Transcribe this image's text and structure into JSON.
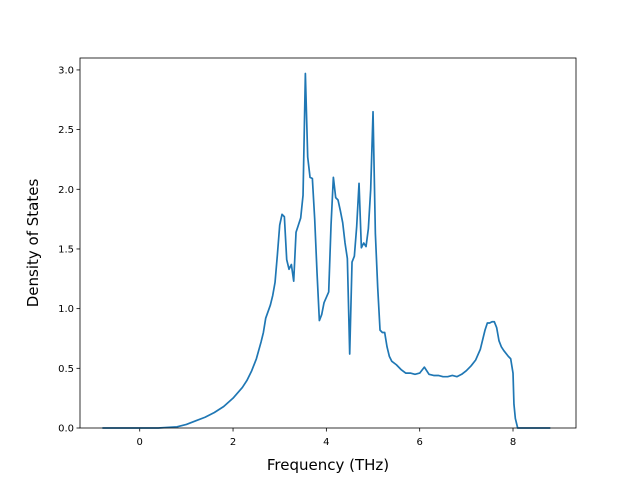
{
  "chart_data": {
    "type": "line",
    "title": "",
    "xlabel": "Frequency (THz)",
    "ylabel": "Density of States",
    "xlim": [
      -1.28,
      9.35
    ],
    "ylim": [
      0.0,
      3.1
    ],
    "xticks": [
      0,
      2,
      4,
      6,
      8
    ],
    "xtick_labels": [
      "0",
      "2",
      "4",
      "6",
      "8"
    ],
    "yticks": [
      0.0,
      0.5,
      1.0,
      1.5,
      2.0,
      2.5,
      3.0
    ],
    "ytick_labels": [
      "0.0",
      "0.5",
      "1.0",
      "1.5",
      "2.0",
      "2.5",
      "3.0"
    ],
    "grid": false,
    "legend": "none",
    "line_color": "#1f77b4",
    "series": [
      {
        "x": [
          -0.8,
          -0.4,
          0.0,
          0.4,
          0.8,
          1.0,
          1.2,
          1.4,
          1.6,
          1.8,
          2.0,
          2.2,
          2.3,
          2.4,
          2.5,
          2.6,
          2.65,
          2.7,
          2.8,
          2.85,
          2.9,
          2.95,
          3.0,
          3.05,
          3.1,
          3.15,
          3.2,
          3.25,
          3.3,
          3.35,
          3.4,
          3.45,
          3.5,
          3.55,
          3.6,
          3.65,
          3.7,
          3.75,
          3.8,
          3.85,
          3.9,
          3.95,
          4.05,
          4.1,
          4.15,
          4.2,
          4.25,
          4.3,
          4.35,
          4.4,
          4.45,
          4.5,
          4.55,
          4.6,
          4.65,
          4.7,
          4.75,
          4.8,
          4.85,
          4.9,
          4.95,
          5.0,
          5.05,
          5.1,
          5.15,
          5.2,
          5.25,
          5.3,
          5.35,
          5.4,
          5.5,
          5.6,
          5.7,
          5.8,
          5.9,
          6.0,
          6.1,
          6.2,
          6.3,
          6.4,
          6.5,
          6.6,
          6.7,
          6.8,
          6.9,
          7.0,
          7.1,
          7.2,
          7.3,
          7.4,
          7.45,
          7.5,
          7.55,
          7.6,
          7.65,
          7.7,
          7.75,
          7.8,
          7.9,
          7.95,
          8.0,
          8.02,
          8.05,
          8.1,
          8.3,
          8.5,
          8.8
        ],
        "y": [
          0.0,
          0.0,
          0.0,
          0.0,
          0.01,
          0.03,
          0.06,
          0.09,
          0.13,
          0.18,
          0.25,
          0.34,
          0.4,
          0.48,
          0.58,
          0.72,
          0.8,
          0.92,
          1.03,
          1.11,
          1.22,
          1.45,
          1.7,
          1.79,
          1.77,
          1.41,
          1.33,
          1.37,
          1.23,
          1.64,
          1.7,
          1.76,
          1.95,
          2.97,
          2.27,
          2.1,
          2.09,
          1.75,
          1.3,
          0.9,
          0.95,
          1.05,
          1.14,
          1.7,
          2.1,
          1.93,
          1.91,
          1.82,
          1.72,
          1.55,
          1.42,
          0.62,
          1.39,
          1.44,
          1.69,
          2.05,
          1.51,
          1.55,
          1.52,
          1.67,
          2.0,
          2.65,
          1.63,
          1.18,
          0.82,
          0.8,
          0.8,
          0.68,
          0.6,
          0.56,
          0.53,
          0.49,
          0.46,
          0.46,
          0.45,
          0.46,
          0.51,
          0.45,
          0.44,
          0.44,
          0.43,
          0.43,
          0.44,
          0.43,
          0.45,
          0.48,
          0.52,
          0.57,
          0.66,
          0.82,
          0.88,
          0.88,
          0.89,
          0.89,
          0.84,
          0.73,
          0.68,
          0.65,
          0.6,
          0.58,
          0.46,
          0.2,
          0.08,
          0.0,
          0.0,
          0.0,
          0.0
        ]
      }
    ]
  }
}
